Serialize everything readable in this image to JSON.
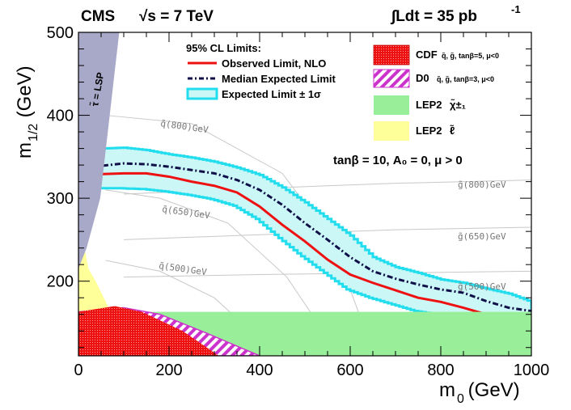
{
  "chart_data": {
    "type": "line",
    "header": {
      "experiment": "CMS",
      "energy": "√s = 7 TeV",
      "lumi_main": "∫Ldt = 35 pb",
      "lumi_exp": "-1"
    },
    "xaxis": {
      "label": "m",
      "label_sub": "0",
      "label_unit": " (GeV)",
      "range": [
        0,
        1000
      ],
      "ticks": [
        0,
        200,
        400,
        600,
        800,
        1000
      ]
    },
    "yaxis": {
      "label": "m",
      "label_sub": "1/2",
      "label_unit": " (GeV)",
      "range": [
        110,
        500
      ],
      "ticks": [
        200,
        300,
        400,
        500
      ]
    },
    "legend_left": {
      "title": "95% CL  Limits:",
      "entries": [
        {
          "key": "observed",
          "label": "Observed Limit, NLO",
          "color": "#ee1111"
        },
        {
          "key": "expected",
          "label": "Median Expected Limit",
          "color": "#101048"
        },
        {
          "key": "band",
          "label": "Expected Limit ± 1σ",
          "color": "#22ddee"
        }
      ]
    },
    "legend_right": [
      {
        "key": "cdf",
        "label": "CDF",
        "detail": "q̃, g̃, tanβ=5, μ<0",
        "color": "#ee1111"
      },
      {
        "key": "d0",
        "label": "D0",
        "detail": "q̃, g̃, tanβ=3, μ<0",
        "color": "#cc33cc"
      },
      {
        "key": "lep_chargino",
        "label": "LEP2",
        "detail": "χ̃±₁",
        "color": "#99ee99"
      },
      {
        "key": "lep_slepton",
        "label": "LEP2",
        "detail": "ℓ̃",
        "color": "#ffff99"
      }
    ],
    "params_text": "tanβ = 10, A₀ = 0, μ > 0",
    "stau_label": "τ̃ = LSP",
    "colors": {
      "stau": "#a8a8c8",
      "lep_slepton": "#ffff99",
      "lep_chargino": "#99ee99",
      "cdf": "#ee1111",
      "d0": "#cc33cc",
      "band_fill": "#ccf7f7",
      "band_edge": "#22ddee",
      "iso_line": "#c8c8c8"
    },
    "observed": {
      "x": [
        0,
        50,
        100,
        150,
        200,
        250,
        300,
        350,
        400,
        450,
        500,
        550,
        600,
        650,
        700,
        750,
        800,
        850,
        900
      ],
      "y": [
        327,
        329,
        330,
        330,
        326,
        320,
        315,
        307,
        290,
        268,
        248,
        226,
        208,
        198,
        189,
        180,
        175,
        168,
        160
      ]
    },
    "expected": {
      "x": [
        0,
        50,
        100,
        150,
        200,
        250,
        300,
        350,
        400,
        450,
        500,
        550,
        600,
        650,
        700,
        750,
        800,
        850,
        900,
        950,
        1000
      ],
      "y": [
        338,
        339,
        342,
        341,
        338,
        334,
        330,
        322,
        310,
        292,
        270,
        250,
        229,
        212,
        203,
        196,
        190,
        186,
        176,
        168,
        164
      ]
    },
    "band_upper": {
      "x": [
        0,
        50,
        100,
        150,
        200,
        250,
        300,
        350,
        400,
        450,
        500,
        550,
        600,
        650,
        700,
        750,
        800,
        850,
        900,
        950,
        1000
      ],
      "y": [
        355,
        360,
        361,
        358,
        353,
        349,
        344,
        337,
        328,
        313,
        295,
        275,
        255,
        229,
        217,
        210,
        202,
        198,
        191,
        185,
        175
      ]
    },
    "band_lower": {
      "x": [
        0,
        50,
        100,
        150,
        200,
        250,
        300,
        350,
        400,
        450,
        500,
        550,
        600,
        650,
        700,
        750,
        800,
        850,
        900,
        950,
        1000
      ],
      "y": [
        311,
        312,
        312,
        311,
        308,
        304,
        299,
        291,
        275,
        252,
        230,
        210,
        190,
        180,
        172,
        164,
        160,
        157,
        155,
        155,
        155
      ]
    },
    "lep_chargino": {
      "m12": 163
    },
    "iso_squark": [
      {
        "label": "q̃(800)GeV",
        "points": [
          [
            60,
            400
          ],
          [
            250,
            390
          ],
          [
            450,
            330
          ],
          [
            560,
            250
          ],
          [
            620,
            160
          ]
        ]
      },
      {
        "label": "q̃(650)GeV",
        "points": [
          [
            60,
            310
          ],
          [
            180,
            300
          ],
          [
            330,
            270
          ],
          [
            460,
            205
          ],
          [
            540,
            140
          ]
        ]
      },
      {
        "label": "q̃(500)GeV",
        "points": [
          [
            60,
            225
          ],
          [
            180,
            212
          ],
          [
            300,
            180
          ],
          [
            380,
            140
          ]
        ]
      }
    ],
    "iso_gluino": [
      {
        "label": "g̃(800)GeV",
        "points": [
          [
            100,
            305
          ],
          [
            400,
            312
          ],
          [
            700,
            318
          ],
          [
            1000,
            322
          ]
        ]
      },
      {
        "label": "g̃(650)GeV",
        "points": [
          [
            100,
            250
          ],
          [
            400,
            256
          ],
          [
            700,
            262
          ],
          [
            1000,
            265
          ]
        ]
      },
      {
        "label": "g̃(500)GeV",
        "points": [
          [
            100,
            205
          ],
          [
            400,
            208
          ],
          [
            700,
            210
          ],
          [
            1000,
            212
          ]
        ]
      }
    ]
  }
}
